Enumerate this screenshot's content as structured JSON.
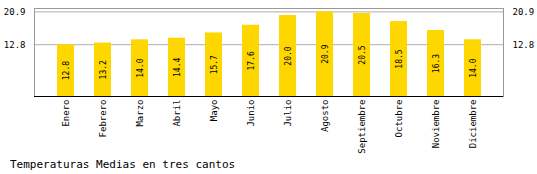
{
  "chart_data": {
    "type": "bar",
    "title": "Temperaturas Medias en tres cantos",
    "categories": [
      "Enero",
      "Febrero",
      "Marzo",
      "Abril",
      "Mayo",
      "Junio",
      "Julio",
      "Agosto",
      "Septiembre",
      "Octubre",
      "Noviembre",
      "Diciembre"
    ],
    "values": [
      12.8,
      13.2,
      14.0,
      14.4,
      15.7,
      17.6,
      20.0,
      20.9,
      20.5,
      18.5,
      16.3,
      14.0
    ],
    "value_labels": [
      "12.8",
      "13.2",
      "14.0",
      "14.4",
      "15.7",
      "17.6",
      "20.0",
      "20.9",
      "20.5",
      "18.5",
      "16.3",
      "14.0"
    ],
    "color": "#FFD700",
    "ylim": [
      0,
      21.736
    ],
    "yticks": [
      12.8,
      20.9
    ],
    "grid": true,
    "data_labels": true
  }
}
